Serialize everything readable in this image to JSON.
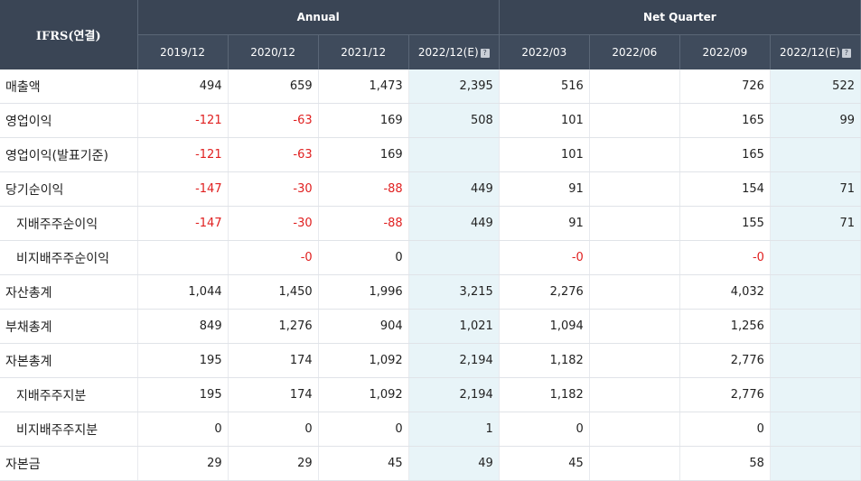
{
  "header": {
    "label_col": "IFRS(연결)",
    "group_annual": "Annual",
    "group_quarter": "Net Quarter",
    "columns": [
      "2019/12",
      "2020/12",
      "2021/12",
      "2022/12(E)",
      "2022/03",
      "2022/06",
      "2022/09",
      "2022/12(E)"
    ],
    "help_icon": "?"
  },
  "colors": {
    "header_bg": "#3a4555",
    "estimate_bg": "#e8f4f8",
    "negative": "#e02020"
  },
  "rows": [
    {
      "label": "매출액",
      "indent": false,
      "values": [
        "494",
        "659",
        "1,473",
        "2,395",
        "516",
        "",
        "726",
        "522"
      ]
    },
    {
      "label": "영업이익",
      "indent": false,
      "values": [
        "-121",
        "-63",
        "169",
        "508",
        "101",
        "",
        "165",
        "99"
      ]
    },
    {
      "label": "영업이익(발표기준)",
      "indent": false,
      "values": [
        "-121",
        "-63",
        "169",
        "",
        "101",
        "",
        "165",
        ""
      ]
    },
    {
      "label": "당기순이익",
      "indent": false,
      "values": [
        "-147",
        "-30",
        "-88",
        "449",
        "91",
        "",
        "154",
        "71"
      ]
    },
    {
      "label": "지배주주순이익",
      "indent": true,
      "values": [
        "-147",
        "-30",
        "-88",
        "449",
        "91",
        "",
        "155",
        "71"
      ]
    },
    {
      "label": "비지배주주순이익",
      "indent": true,
      "values": [
        "",
        "-0",
        "0",
        "",
        "-0",
        "",
        "-0",
        ""
      ]
    },
    {
      "label": "자산총계",
      "indent": false,
      "values": [
        "1,044",
        "1,450",
        "1,996",
        "3,215",
        "2,276",
        "",
        "4,032",
        ""
      ]
    },
    {
      "label": "부채총계",
      "indent": false,
      "values": [
        "849",
        "1,276",
        "904",
        "1,021",
        "1,094",
        "",
        "1,256",
        ""
      ]
    },
    {
      "label": "자본총계",
      "indent": false,
      "values": [
        "195",
        "174",
        "1,092",
        "2,194",
        "1,182",
        "",
        "2,776",
        ""
      ]
    },
    {
      "label": "지배주주지분",
      "indent": true,
      "values": [
        "195",
        "174",
        "1,092",
        "2,194",
        "1,182",
        "",
        "2,776",
        ""
      ]
    },
    {
      "label": "비지배주주지분",
      "indent": true,
      "values": [
        "0",
        "0",
        "0",
        "1",
        "0",
        "",
        "0",
        ""
      ]
    },
    {
      "label": "자본금",
      "indent": false,
      "values": [
        "29",
        "29",
        "45",
        "49",
        "45",
        "",
        "58",
        ""
      ]
    }
  ]
}
